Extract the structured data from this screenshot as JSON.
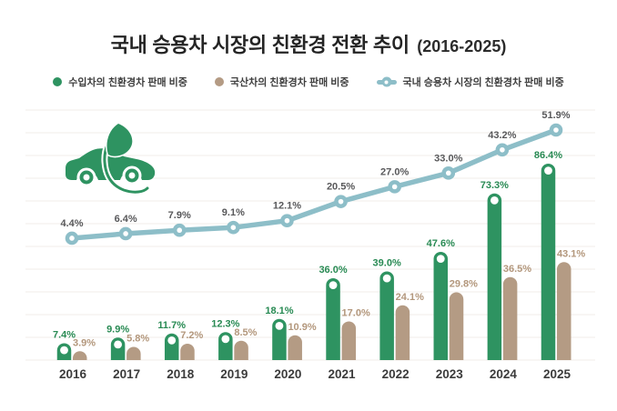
{
  "header": {
    "title": "국내 승용차 시장의 친환경 전환 추이",
    "subtitle": "(2016-2025)"
  },
  "legend": [
    {
      "label": "수입차의 친환경차 판매 비중",
      "marker": "dot",
      "color": "#2e9361",
      "marker_name": "imported-series-dot-icon"
    },
    {
      "label": "국산차의 친환경차 판매 비중",
      "marker": "dot",
      "color": "#b49b84",
      "marker_name": "domestic-series-dot-icon"
    },
    {
      "label": "국내 승용차 시장의 친환경차 판매 비중",
      "marker": "line-dot",
      "color": "#8dbec8",
      "marker_name": "market-series-line-icon"
    }
  ],
  "icon": {
    "name": "eco-car-icon",
    "color": "#2e9361"
  },
  "colors": {
    "imported_bar": "#2e9361",
    "imported_label": "#288a53",
    "domestic_bar": "#b49b84",
    "domestic_label": "#b3977c",
    "market_line": "#8dbec8",
    "market_label": "#58585a",
    "year_label": "#3b3b3b",
    "gridline": "#f1eeea",
    "background": "#ffffff"
  },
  "chart_data": {
    "type": "bar",
    "subtype": "grouped-bars-with-line",
    "title": "국내 승용차 시장의 친환경 전환 추이 (2016-2025)",
    "categories": [
      "2016",
      "2017",
      "2018",
      "2019",
      "2020",
      "2021",
      "2022",
      "2023",
      "2024",
      "2025"
    ],
    "series": [
      {
        "name": "수입차의 친환경차 판매 비중",
        "type": "bar",
        "color": "#2e9361",
        "values": [
          7.4,
          9.9,
          11.7,
          12.3,
          18.1,
          36.0,
          39.0,
          47.6,
          73.3,
          86.4
        ]
      },
      {
        "name": "국산차의 친환경차 판매 비중",
        "type": "bar",
        "color": "#b49b84",
        "values": [
          3.9,
          5.8,
          7.2,
          8.5,
          10.9,
          17.0,
          24.1,
          29.8,
          36.5,
          43.1
        ]
      },
      {
        "name": "국내 승용차 시장의 친환경차 판매 비중",
        "type": "line",
        "color": "#8dbec8",
        "values": [
          4.4,
          6.4,
          7.9,
          9.1,
          12.1,
          20.5,
          27.0,
          33.0,
          43.2,
          51.9
        ]
      }
    ],
    "value_suffix": "%",
    "value_decimals": 1,
    "xlabel": "",
    "ylabel": "",
    "ylim": [
      0,
      100
    ],
    "grid": true,
    "legend_position": "top"
  }
}
